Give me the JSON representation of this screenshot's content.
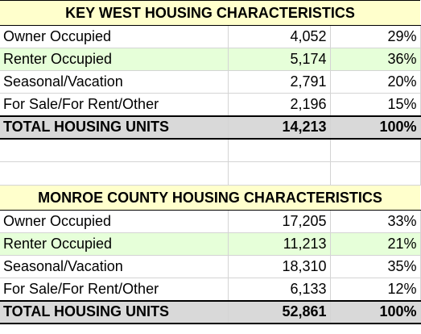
{
  "key_west": {
    "title": "KEY WEST HOUSING CHARACTERISTICS",
    "rows": [
      {
        "label": "Owner Occupied",
        "count": "4,052",
        "percent": "29%"
      },
      {
        "label": "Renter Occupied",
        "count": "5,174",
        "percent": "36%"
      },
      {
        "label": "Seasonal/Vacation",
        "count": "2,791",
        "percent": "20%"
      },
      {
        "label": "For Sale/For Rent/Other",
        "count": "2,196",
        "percent": "15%"
      }
    ],
    "total": {
      "label": "TOTAL HOUSING UNITS",
      "count": "14,213",
      "percent": "100%"
    }
  },
  "monroe": {
    "title": "MONROE COUNTY HOUSING CHARACTERISTICS",
    "rows": [
      {
        "label": "Owner Occupied",
        "count": "17,205",
        "percent": "33%"
      },
      {
        "label": "Renter Occupied",
        "count": "11,213",
        "percent": "21%"
      },
      {
        "label": "Seasonal/Vacation",
        "count": "18,310",
        "percent": "35%"
      },
      {
        "label": "For Sale/For Rent/Other",
        "count": "6,133",
        "percent": "12%"
      }
    ],
    "total": {
      "label": "TOTAL HOUSING UNITS",
      "count": "52,861",
      "percent": "100%"
    }
  },
  "colors": {
    "header_fill": "#ffffcc",
    "highlight_row_fill": "#e6ffd9",
    "total_row_fill": "#d9d9d9",
    "gridline": "#d4d4d4"
  }
}
